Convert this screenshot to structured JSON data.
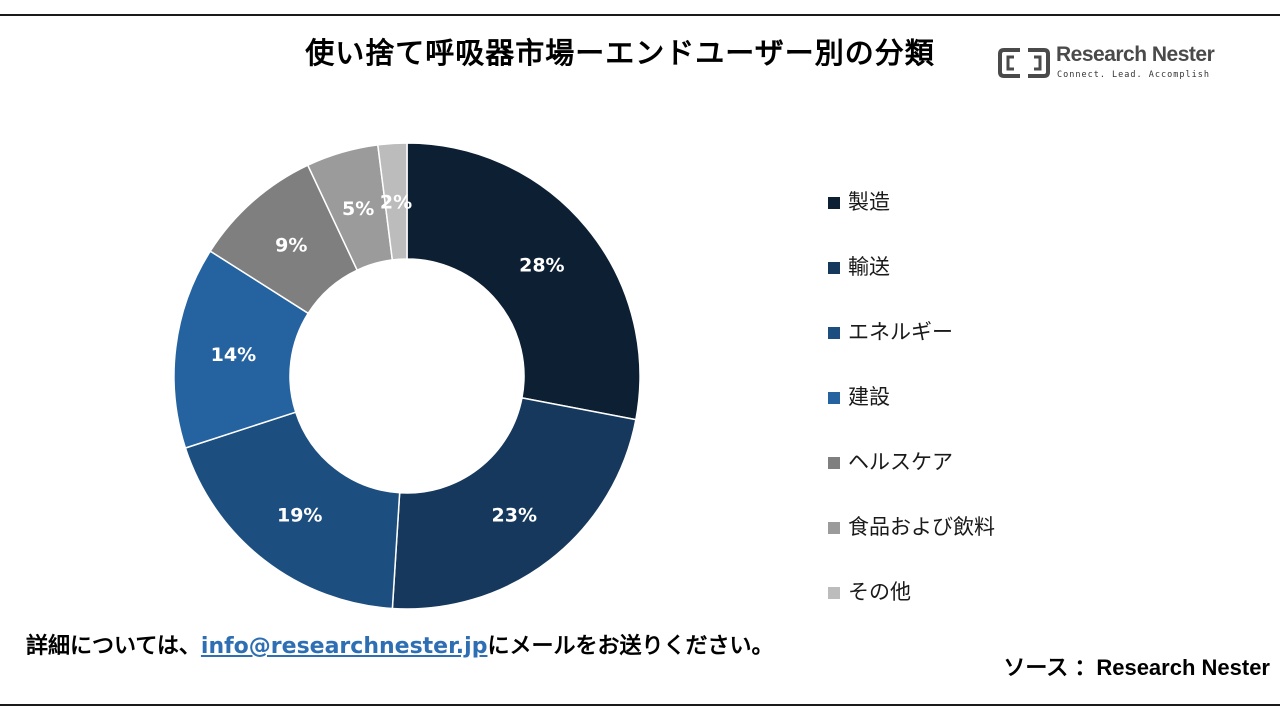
{
  "header": {
    "title": "使い捨て呼吸器市場ーエンドユーザー別の分類"
  },
  "logo": {
    "name": "Research Nester",
    "tagline": "Connect. Lead. Accomplish"
  },
  "chart_data": {
    "type": "pie",
    "variant": "donut",
    "title": "使い捨て呼吸器市場ーエンドユーザー別の分類",
    "legend_position": "right",
    "categories": [
      "製造",
      "輸送",
      "エネルギー",
      "建設",
      "ヘルスケア",
      "食品および飲料",
      "その他"
    ],
    "values": [
      28,
      23,
      19,
      14,
      9,
      5,
      2
    ],
    "labels": [
      "28%",
      "23%",
      "19%",
      "14%",
      "9%",
      "5%",
      "2%"
    ],
    "colors": [
      "#0d1f33",
      "#16385c",
      "#1d4e80",
      "#2563a0",
      "#7f7f7f",
      "#9b9b9b",
      "#bcbcbc"
    ]
  },
  "footer": {
    "note_prefix": "詳細については、",
    "email": "info@researchnester.jp",
    "note_suffix": "にメールをお送りください。",
    "source": "ソース ：Research Nester"
  }
}
